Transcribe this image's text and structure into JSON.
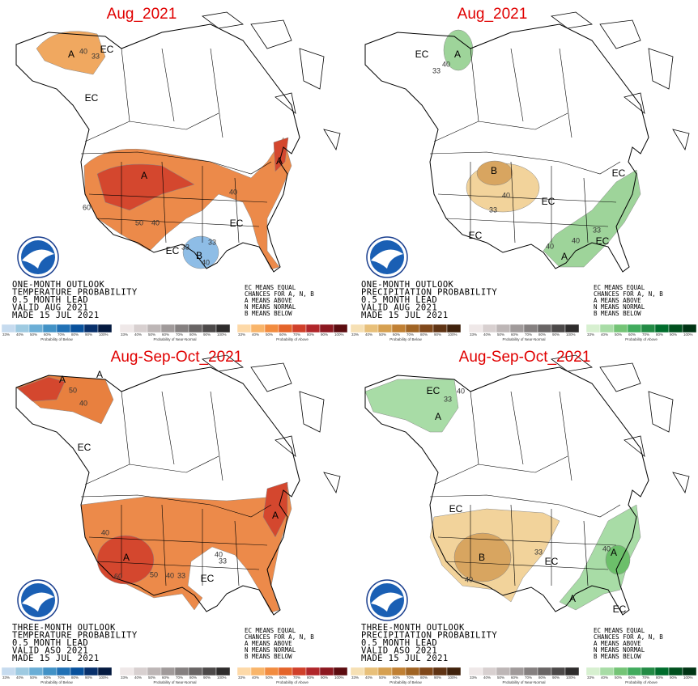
{
  "panels": [
    {
      "title": "Aug_2021",
      "outlook": [
        "ONE-MONTH OUTLOOK",
        "TEMPERATURE PROBABILITY",
        "0.5 MONTH LEAD",
        "VALID AUG 2021",
        "MADE 15 JUL 2021"
      ],
      "labels": [
        "A",
        "40",
        "33",
        "EC",
        "EC",
        "A",
        "A",
        "60",
        "50",
        "40",
        "40",
        "EC",
        "33",
        "EC",
        "B",
        "33",
        "40"
      ]
    },
    {
      "title": "Aug_2021",
      "outlook": [
        "ONE-MONTH OUTLOOK",
        "PRECIPITATION PROBABILITY",
        "0.5 MONTH LEAD",
        "VALID AUG 2021",
        "MADE 15 JUL 2021"
      ],
      "labels": [
        "EC",
        "A",
        "33",
        "40",
        "B",
        "40",
        "33",
        "EC",
        "EC",
        "EC",
        "40",
        "40",
        "A",
        "33",
        "EC"
      ]
    },
    {
      "title": "Aug-Sep-Oct_2021",
      "outlook": [
        "THREE-MONTH OUTLOOK",
        "TEMPERATURE PROBABILITY",
        "0.5 MONTH LEAD",
        "VALID ASO 2021",
        "MADE 15 JUL 2021"
      ],
      "labels": [
        "A",
        "A",
        "50",
        "40",
        "EC",
        "40",
        "A",
        "60",
        "50",
        "40",
        "33",
        "EC",
        "40",
        "33",
        "A"
      ]
    },
    {
      "title": "Aug-Sep-Oct_2021",
      "outlook": [
        "THREE-MONTH OUTLOOK",
        "PRECIPITATION PROBABILITY",
        "0.5 MONTH LEAD",
        "VALID ASO 2021",
        "MADE 15 JUL 2021"
      ],
      "labels": [
        "EC",
        "33",
        "40",
        "A",
        "EC",
        "B",
        "40",
        "33",
        "EC",
        "40",
        "A",
        "A",
        "EC"
      ]
    }
  ],
  "ec_legend": [
    "EC MEANS EQUAL",
    "CHANCES FOR A, N, B",
    "A MEANS ABOVE",
    "N MEANS NORMAL",
    "B MEANS BELOW"
  ],
  "colorbar": {
    "ticks": [
      "33%",
      "40%",
      "50%",
      "60%",
      "70%",
      "80%",
      "90%",
      "100%"
    ],
    "captions": [
      "Probability of Below",
      "Probability of Near-Normal",
      "Probability of Above"
    ]
  }
}
